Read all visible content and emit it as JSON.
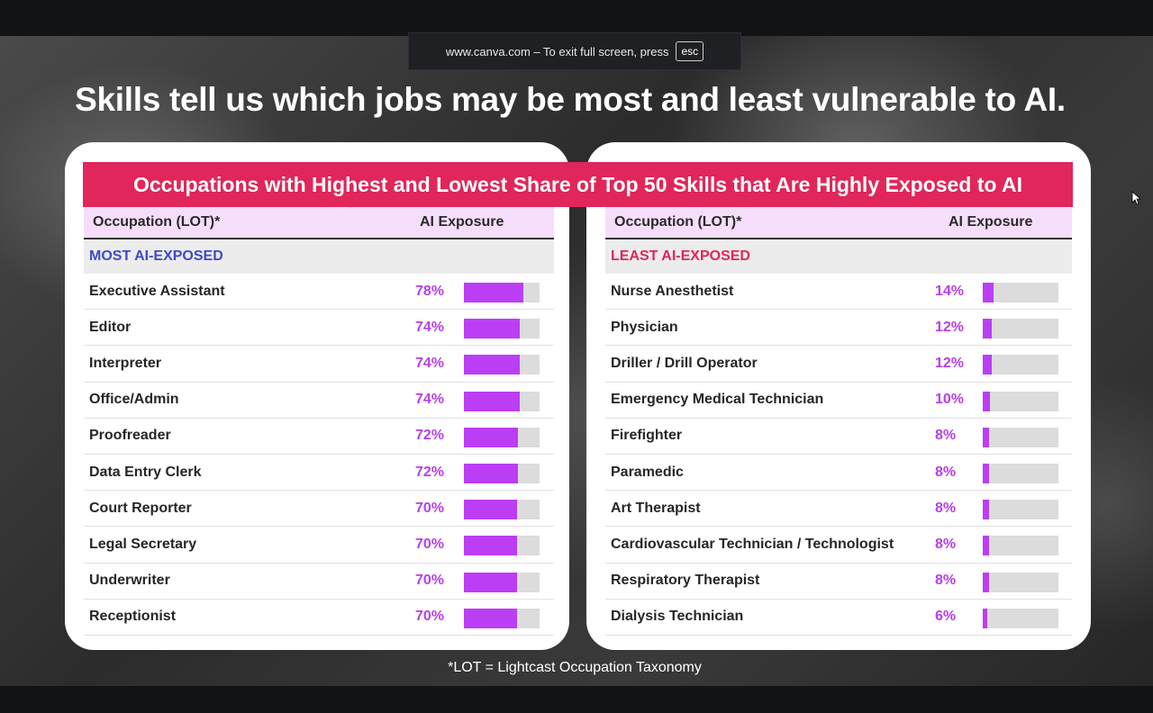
{
  "fullscreen_notice": {
    "text": "www.canva.com – To exit full screen, press",
    "key": "esc"
  },
  "headline": "Skills tell us which jobs may be most and least vulnerable to AI.",
  "chart_title": "Occupations with Highest and Lowest Share of Top 50 Skills that Are Highly Exposed to AI",
  "left_table": {
    "col_occupation": "Occupation (LOT)*",
    "col_exposure": "AI Exposure",
    "section": "MOST AI-EXPOSED",
    "rows": [
      {
        "occupation": "Executive Assistant",
        "pct": "78%",
        "value": 78
      },
      {
        "occupation": "Editor",
        "pct": "74%",
        "value": 74
      },
      {
        "occupation": "Interpreter",
        "pct": "74%",
        "value": 74
      },
      {
        "occupation": "Office/Admin",
        "pct": "74%",
        "value": 74
      },
      {
        "occupation": "Proofreader",
        "pct": "72%",
        "value": 72
      },
      {
        "occupation": "Data Entry Clerk",
        "pct": "72%",
        "value": 72
      },
      {
        "occupation": "Court Reporter",
        "pct": "70%",
        "value": 70
      },
      {
        "occupation": "Legal Secretary",
        "pct": "70%",
        "value": 70
      },
      {
        "occupation": "Underwriter",
        "pct": "70%",
        "value": 70
      },
      {
        "occupation": "Receptionist",
        "pct": "70%",
        "value": 70
      }
    ]
  },
  "right_table": {
    "col_occupation": "Occupation (LOT)*",
    "col_exposure": "AI Exposure",
    "section": "LEAST AI-EXPOSED",
    "rows": [
      {
        "occupation": "Nurse Anesthetist",
        "pct": "14%",
        "value": 14
      },
      {
        "occupation": "Physician",
        "pct": "12%",
        "value": 12
      },
      {
        "occupation": "Driller / Drill Operator",
        "pct": "12%",
        "value": 12
      },
      {
        "occupation": "Emergency Medical Technician",
        "pct": "10%",
        "value": 10
      },
      {
        "occupation": "Firefighter",
        "pct": "8%",
        "value": 8
      },
      {
        "occupation": "Paramedic",
        "pct": "8%",
        "value": 8
      },
      {
        "occupation": "Art Therapist",
        "pct": "8%",
        "value": 8
      },
      {
        "occupation": "Cardiovascular Technician / Technologist",
        "pct": "8%",
        "value": 8
      },
      {
        "occupation": "Respiratory Therapist",
        "pct": "8%",
        "value": 8
      },
      {
        "occupation": "Dialysis Technician",
        "pct": "6%",
        "value": 6
      }
    ]
  },
  "footnote": "*LOT = Lightcast Occupation Taxonomy",
  "colors": {
    "banner": "#e0265a",
    "bar_fill": "#bb3ef5",
    "bar_track": "#dcdcdc",
    "most_label": "#3f49c9",
    "least_label": "#e0265a",
    "header_bg": "#f6defa"
  }
}
